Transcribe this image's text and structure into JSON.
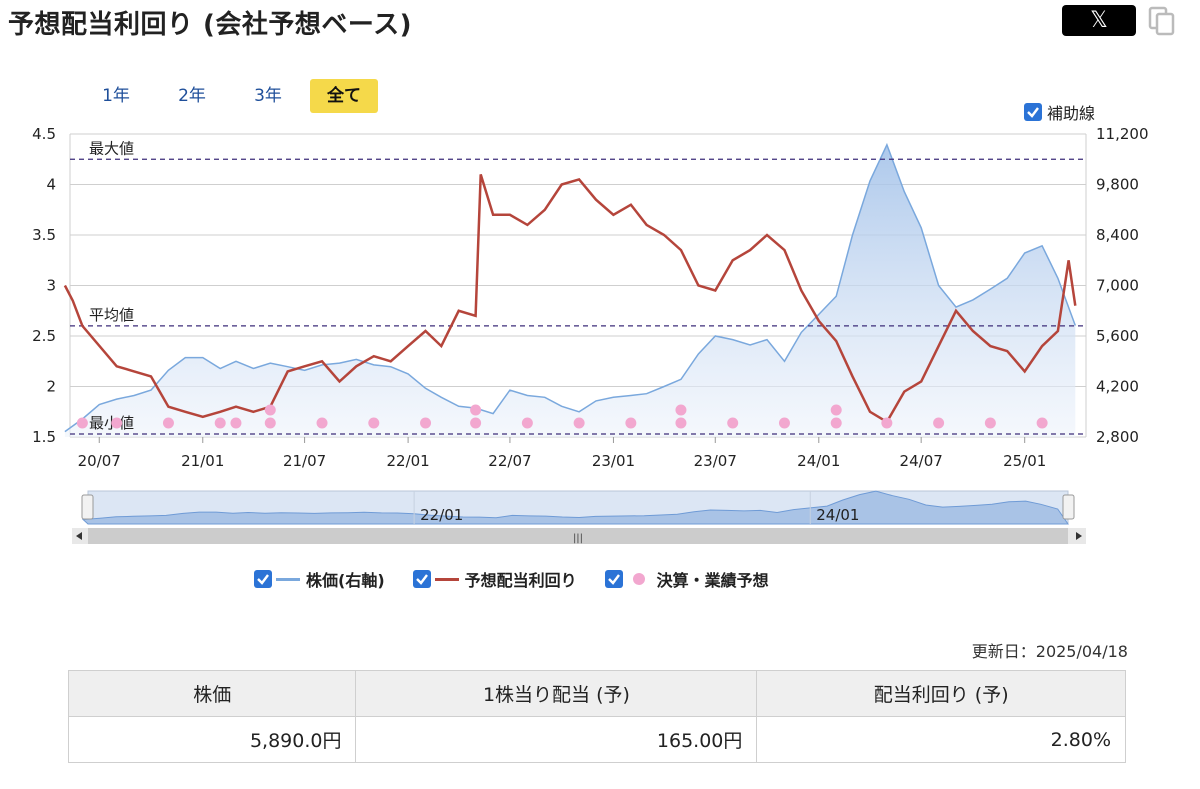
{
  "header": {
    "title": "予想配当利回り (会社予想ベース)",
    "share_x_label": "𝕏",
    "copy_icon": "copy-icon"
  },
  "range_tabs": [
    {
      "label": "1年",
      "active": false
    },
    {
      "label": "2年",
      "active": false
    },
    {
      "label": "3年",
      "active": false
    },
    {
      "label": "全て",
      "active": true
    }
  ],
  "aux_lines": {
    "label": "補助線",
    "checked": true
  },
  "legend": [
    {
      "label": "株価(右軸)",
      "color": "#7aa8dd",
      "kind": "line"
    },
    {
      "label": "予想配当利回り",
      "color": "#b5453b",
      "kind": "line"
    },
    {
      "label": "決算・業績予想",
      "color": "#f2a7cf",
      "kind": "dot"
    }
  ],
  "navigator": {
    "labels": [
      "22/01",
      "24/01"
    ],
    "scroll_grip": "|||"
  },
  "chart_data": {
    "type": "line",
    "x_ticks": [
      "20/07",
      "21/01",
      "21/07",
      "22/01",
      "22/07",
      "23/01",
      "23/07",
      "24/01",
      "24/07",
      "25/01"
    ],
    "y_left": {
      "ticks": [
        "1.5",
        "2",
        "2.5",
        "3",
        "3.5",
        "4",
        "4.5"
      ],
      "min": 1.5,
      "max": 4.5
    },
    "y_right": {
      "ticks": [
        "2,800",
        "4,200",
        "5,600",
        "7,000",
        "8,400",
        "9,800",
        "11,200"
      ],
      "min": 2800,
      "max": 11200
    },
    "reference_lines": [
      {
        "label": "最大値",
        "value": 4.25
      },
      {
        "label": "平均値",
        "value": 2.6
      },
      {
        "label": "最小値",
        "value": 1.53
      }
    ],
    "series": [
      {
        "name": "株価(右軸)",
        "axis": "right",
        "color": "#7aa8dd",
        "points": [
          [
            "2020-05",
            2950
          ],
          [
            "2020-06",
            3300
          ],
          [
            "2020-07",
            3700
          ],
          [
            "2020-08",
            3850
          ],
          [
            "2020-09",
            3950
          ],
          [
            "2020-10",
            4100
          ],
          [
            "2020-11",
            4650
          ],
          [
            "2020-12",
            5000
          ],
          [
            "2021-01",
            5000
          ],
          [
            "2021-02",
            4700
          ],
          [
            "2021-03",
            4900
          ],
          [
            "2021-04",
            4700
          ],
          [
            "2021-05",
            4850
          ],
          [
            "2021-06",
            4750
          ],
          [
            "2021-07",
            4650
          ],
          [
            "2021-08",
            4800
          ],
          [
            "2021-09",
            4850
          ],
          [
            "2021-10",
            4950
          ],
          [
            "2021-11",
            4800
          ],
          [
            "2021-12",
            4750
          ],
          [
            "2022-01",
            4550
          ],
          [
            "2022-02",
            4150
          ],
          [
            "2022-03",
            3900
          ],
          [
            "2022-04",
            3650
          ],
          [
            "2022-05",
            3600
          ],
          [
            "2022-06",
            3450
          ],
          [
            "2022-07",
            4100
          ],
          [
            "2022-08",
            3950
          ],
          [
            "2022-09",
            3900
          ],
          [
            "2022-10",
            3650
          ],
          [
            "2022-11",
            3500
          ],
          [
            "2022-12",
            3800
          ],
          [
            "2023-01",
            3900
          ],
          [
            "2023-02",
            3950
          ],
          [
            "2023-03",
            4000
          ],
          [
            "2023-04",
            4200
          ],
          [
            "2023-05",
            4400
          ],
          [
            "2023-06",
            5100
          ],
          [
            "2023-07",
            5600
          ],
          [
            "2023-08",
            5500
          ],
          [
            "2023-09",
            5350
          ],
          [
            "2023-10",
            5500
          ],
          [
            "2023-11",
            4900
          ],
          [
            "2023-12",
            5700
          ],
          [
            "2024-01",
            6200
          ],
          [
            "2024-02",
            6700
          ],
          [
            "2024-03",
            8400
          ],
          [
            "2024-04",
            9900
          ],
          [
            "2024-05",
            10900
          ],
          [
            "2024-06",
            9600
          ],
          [
            "2024-07",
            8600
          ],
          [
            "2024-08",
            7000
          ],
          [
            "2024-09",
            6400
          ],
          [
            "2024-10",
            6600
          ],
          [
            "2024-11",
            6900
          ],
          [
            "2024-12",
            7200
          ],
          [
            "2025-01",
            7900
          ],
          [
            "2025-02",
            8100
          ],
          [
            "2025-03",
            7200
          ],
          [
            "2025-04",
            5890
          ]
        ]
      },
      {
        "name": "予想配当利回り",
        "axis": "left",
        "color": "#b5453b",
        "points": [
          [
            "2020-05",
            3.0
          ],
          [
            "2020-05-15",
            2.85
          ],
          [
            "2020-06",
            2.6
          ],
          [
            "2020-08",
            2.2
          ],
          [
            "2020-09",
            2.15
          ],
          [
            "2020-10",
            2.1
          ],
          [
            "2020-11",
            1.8
          ],
          [
            "2020-12",
            1.75
          ],
          [
            "2021-01",
            1.7
          ],
          [
            "2021-02",
            1.75
          ],
          [
            "2021-03",
            1.8
          ],
          [
            "2021-04",
            1.75
          ],
          [
            "2021-05",
            1.8
          ],
          [
            "2021-06",
            2.15
          ],
          [
            "2021-07",
            2.2
          ],
          [
            "2021-08",
            2.25
          ],
          [
            "2021-09",
            2.05
          ],
          [
            "2021-10",
            2.2
          ],
          [
            "2021-11",
            2.3
          ],
          [
            "2021-12",
            2.25
          ],
          [
            "2022-01",
            2.4
          ],
          [
            "2022-02",
            2.55
          ],
          [
            "2022-03",
            2.4
          ],
          [
            "2022-04",
            2.75
          ],
          [
            "2022-05",
            2.7
          ],
          [
            "2022-05-10",
            4.1
          ],
          [
            "2022-06",
            3.7
          ],
          [
            "2022-07",
            3.7
          ],
          [
            "2022-08",
            3.6
          ],
          [
            "2022-09",
            3.75
          ],
          [
            "2022-10",
            4.0
          ],
          [
            "2022-11",
            4.05
          ],
          [
            "2022-12",
            3.85
          ],
          [
            "2023-01",
            3.7
          ],
          [
            "2023-02",
            3.8
          ],
          [
            "2023-03",
            3.6
          ],
          [
            "2023-04",
            3.5
          ],
          [
            "2023-05",
            3.35
          ],
          [
            "2023-06",
            3.0
          ],
          [
            "2023-07",
            2.95
          ],
          [
            "2023-08",
            3.25
          ],
          [
            "2023-09",
            3.35
          ],
          [
            "2023-10",
            3.5
          ],
          [
            "2023-11",
            3.35
          ],
          [
            "2023-12",
            2.95
          ],
          [
            "2024-01",
            2.65
          ],
          [
            "2024-02",
            2.45
          ],
          [
            "2024-03",
            2.1
          ],
          [
            "2024-04",
            1.75
          ],
          [
            "2024-05",
            1.65
          ],
          [
            "2024-06",
            1.95
          ],
          [
            "2024-07",
            2.05
          ],
          [
            "2024-08",
            2.4
          ],
          [
            "2024-09",
            2.75
          ],
          [
            "2024-10",
            2.55
          ],
          [
            "2024-11",
            2.4
          ],
          [
            "2024-12",
            2.35
          ],
          [
            "2025-01",
            2.15
          ],
          [
            "2025-02",
            2.4
          ],
          [
            "2025-03",
            2.55
          ],
          [
            "2025-03-20",
            3.25
          ],
          [
            "2025-04",
            2.8
          ]
        ]
      }
    ],
    "events": {
      "name": "決算・業績予想",
      "color": "#f2a7cf",
      "dates": [
        "2020-06",
        "2020-08",
        "2020-11",
        "2021-02",
        "2021-03",
        "2021-05",
        "2021-05-02",
        "2021-08",
        "2021-11",
        "2022-02",
        "2022-05",
        "2022-05-02",
        "2022-08",
        "2022-11",
        "2023-02",
        "2023-05",
        "2023-05-02",
        "2023-08",
        "2023-11",
        "2024-02",
        "2024-02-02",
        "2024-05",
        "2024-08",
        "2024-11",
        "2025-02"
      ]
    }
  },
  "updated": "更新日：2025/04/18",
  "summary_table": {
    "headers": [
      "株価",
      "1株当り配当 (予)",
      "配当利回り (予)"
    ],
    "values": [
      "5,890.0円",
      "165.00円",
      "2.80%"
    ]
  }
}
